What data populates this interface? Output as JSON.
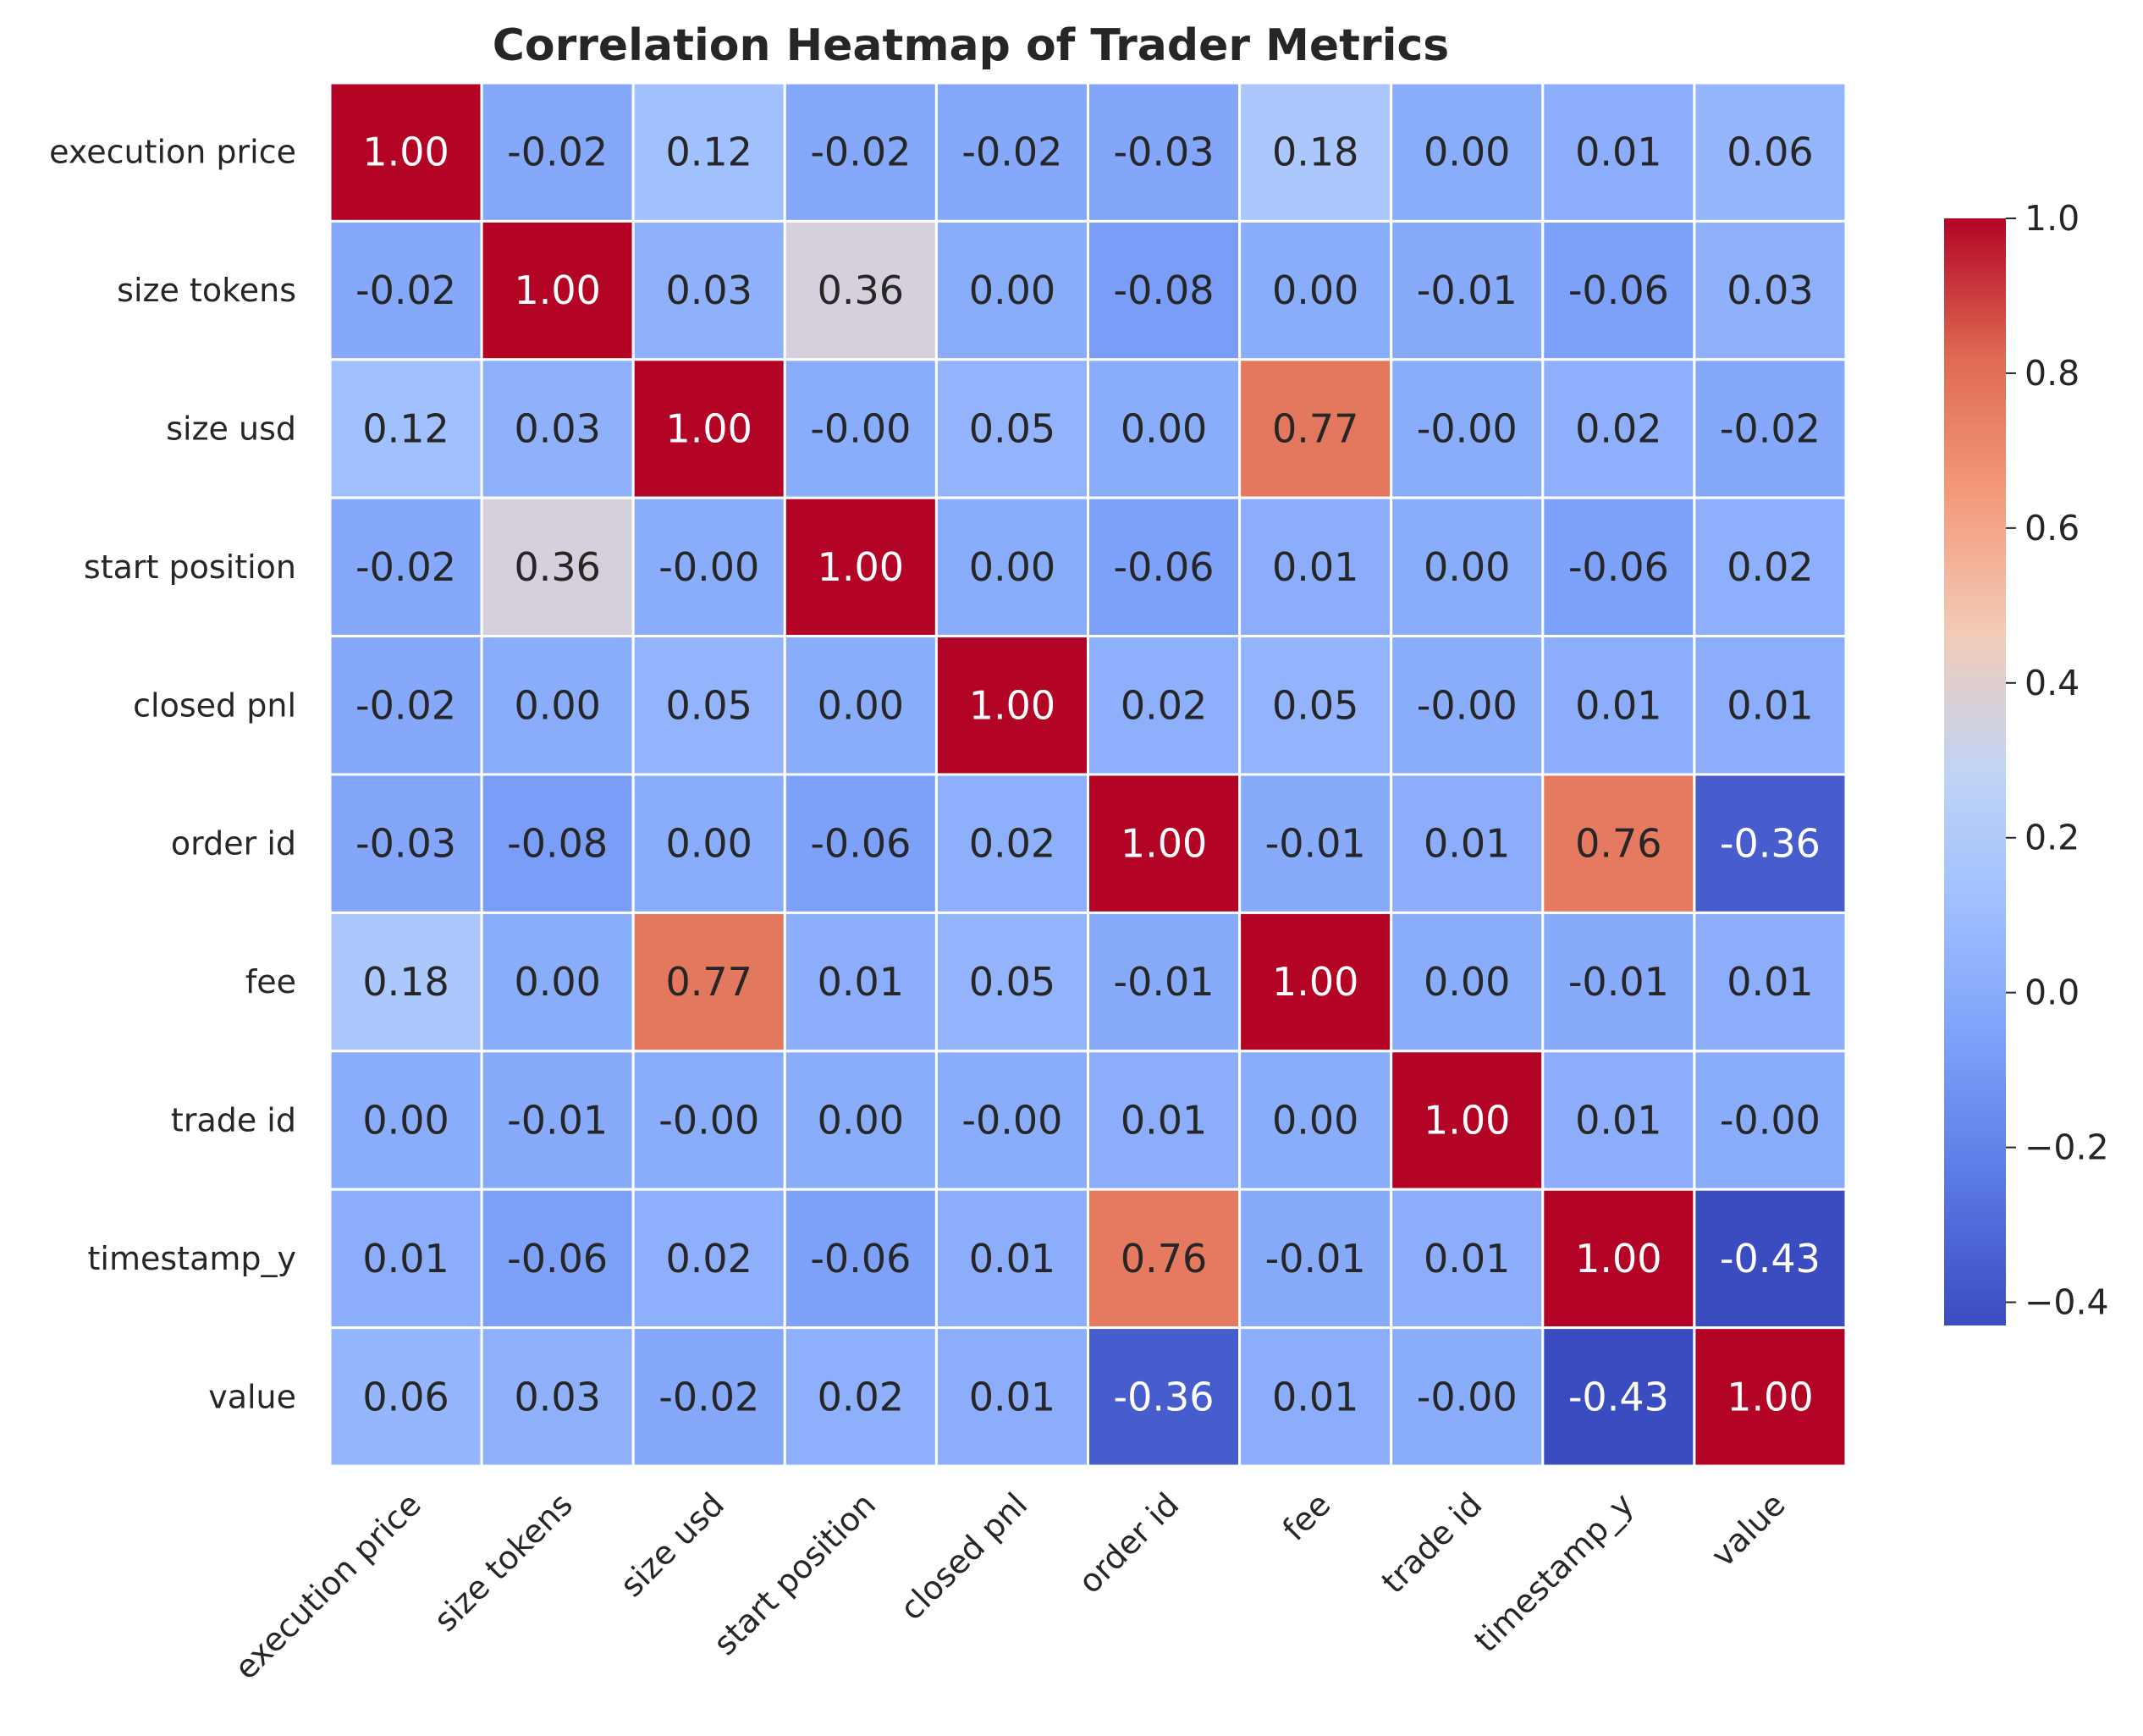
{
  "chart_data": {
    "type": "heatmap",
    "title": "Correlation Heatmap of Trader Metrics",
    "xlabel": "",
    "ylabel": "",
    "colormap": "coolwarm",
    "vmin": -0.43,
    "vmax": 1.0,
    "categories": [
      "execution price",
      "size tokens",
      "size usd",
      "start position",
      "closed pnl",
      "order id",
      "fee",
      "trade id",
      "timestamp_y",
      "value"
    ],
    "annotations": [
      [
        "1.00",
        "-0.02",
        "0.12",
        "-0.02",
        "-0.02",
        "-0.03",
        "0.18",
        "0.00",
        "0.01",
        "0.06"
      ],
      [
        "-0.02",
        "1.00",
        "0.03",
        "0.36",
        "0.00",
        "-0.08",
        "0.00",
        "-0.01",
        "-0.06",
        "0.03"
      ],
      [
        "0.12",
        "0.03",
        "1.00",
        "-0.00",
        "0.05",
        "0.00",
        "0.77",
        "-0.00",
        "0.02",
        "-0.02"
      ],
      [
        "-0.02",
        "0.36",
        "-0.00",
        "1.00",
        "0.00",
        "-0.06",
        "0.01",
        "0.00",
        "-0.06",
        "0.02"
      ],
      [
        "-0.02",
        "0.00",
        "0.05",
        "0.00",
        "1.00",
        "0.02",
        "0.05",
        "-0.00",
        "0.01",
        "0.01"
      ],
      [
        "-0.03",
        "-0.08",
        "0.00",
        "-0.06",
        "0.02",
        "1.00",
        "-0.01",
        "0.01",
        "0.76",
        "-0.36"
      ],
      [
        "0.18",
        "0.00",
        "0.77",
        "0.01",
        "0.05",
        "-0.01",
        "1.00",
        "0.00",
        "-0.01",
        "0.01"
      ],
      [
        "0.00",
        "-0.01",
        "-0.00",
        "0.00",
        "-0.00",
        "0.01",
        "0.00",
        "1.00",
        "0.01",
        "-0.00"
      ],
      [
        "0.01",
        "-0.06",
        "0.02",
        "-0.06",
        "0.01",
        "0.76",
        "-0.01",
        "0.01",
        "1.00",
        "-0.43"
      ],
      [
        "0.06",
        "0.03",
        "-0.02",
        "0.02",
        "0.01",
        "-0.36",
        "0.01",
        "-0.00",
        "-0.43",
        "1.00"
      ]
    ],
    "colorbar_ticks": [
      1.0,
      0.8,
      0.6,
      0.4,
      0.2,
      0.0,
      -0.2,
      -0.4
    ],
    "colorbar_tick_labels": [
      "1.0",
      "0.8",
      "0.6",
      "0.4",
      "0.2",
      "0.0",
      "−0.2",
      "−0.4"
    ],
    "grid": false
  }
}
